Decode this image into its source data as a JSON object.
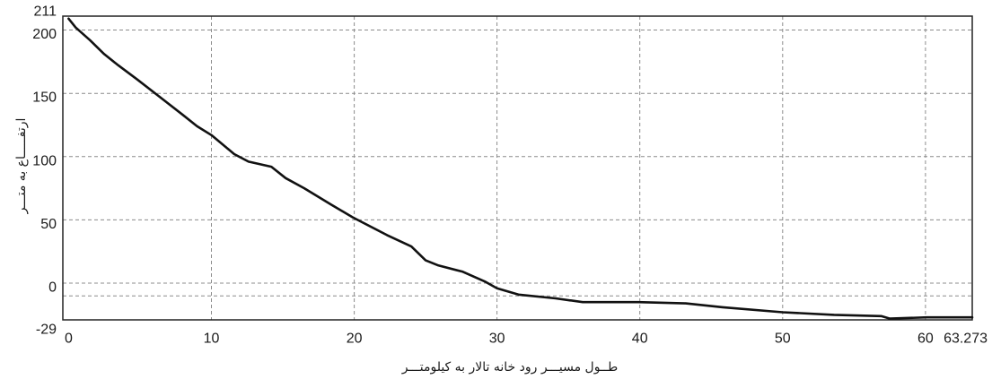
{
  "chart_data": {
    "type": "line",
    "xlabel": "طــول مسیـــر رود خانه تالار به کیلومتـــر",
    "ylabel": "ارتفـــــاع به متـــر",
    "xlim": [
      -0.4,
      63.273
    ],
    "ylim": [
      -29,
      211
    ],
    "xticks": [
      0,
      10,
      20,
      30,
      40,
      50,
      60,
      63.273
    ],
    "xtick_labels": [
      "0",
      "10",
      "20",
      "30",
      "40",
      "50",
      "60",
      "63.273"
    ],
    "yticks": [
      211,
      200,
      150,
      100,
      50,
      0,
      -29
    ],
    "ytick_labels": [
      "211",
      "200",
      "150",
      "100",
      "50",
      "0",
      "-29"
    ],
    "grid": true,
    "x_gridlines": [
      10,
      20,
      30,
      40,
      50,
      60
    ],
    "y_gridlines": [
      200,
      150,
      100,
      50,
      0,
      -10
    ],
    "line_color": "#111111",
    "grid_color": "#8c8c8c",
    "series": [
      {
        "x": [
          0,
          0.5,
          1.5,
          2.5,
          3.5,
          4.8,
          6.4,
          8.0,
          9.0,
          10.0,
          11.6,
          12.6,
          14.2,
          15.2,
          16.5,
          18.4,
          19.9,
          22.3,
          24.0,
          25.0,
          25.9,
          27.6,
          29.2,
          30.0,
          31.5,
          34.1,
          36.0,
          39.9,
          43.2,
          45.8,
          50.0,
          53.6,
          56.9,
          57.5,
          60.1,
          63.273
        ],
        "y": [
          209,
          202,
          192,
          181,
          172,
          161,
          147,
          133,
          124,
          117,
          102,
          96,
          92,
          83,
          75,
          62,
          52,
          38,
          29,
          18,
          14,
          9,
          1,
          -4,
          -9,
          -12,
          -15,
          -15,
          -16,
          -19,
          -23,
          -25,
          -26,
          -28,
          -27,
          -27
        ]
      }
    ]
  }
}
